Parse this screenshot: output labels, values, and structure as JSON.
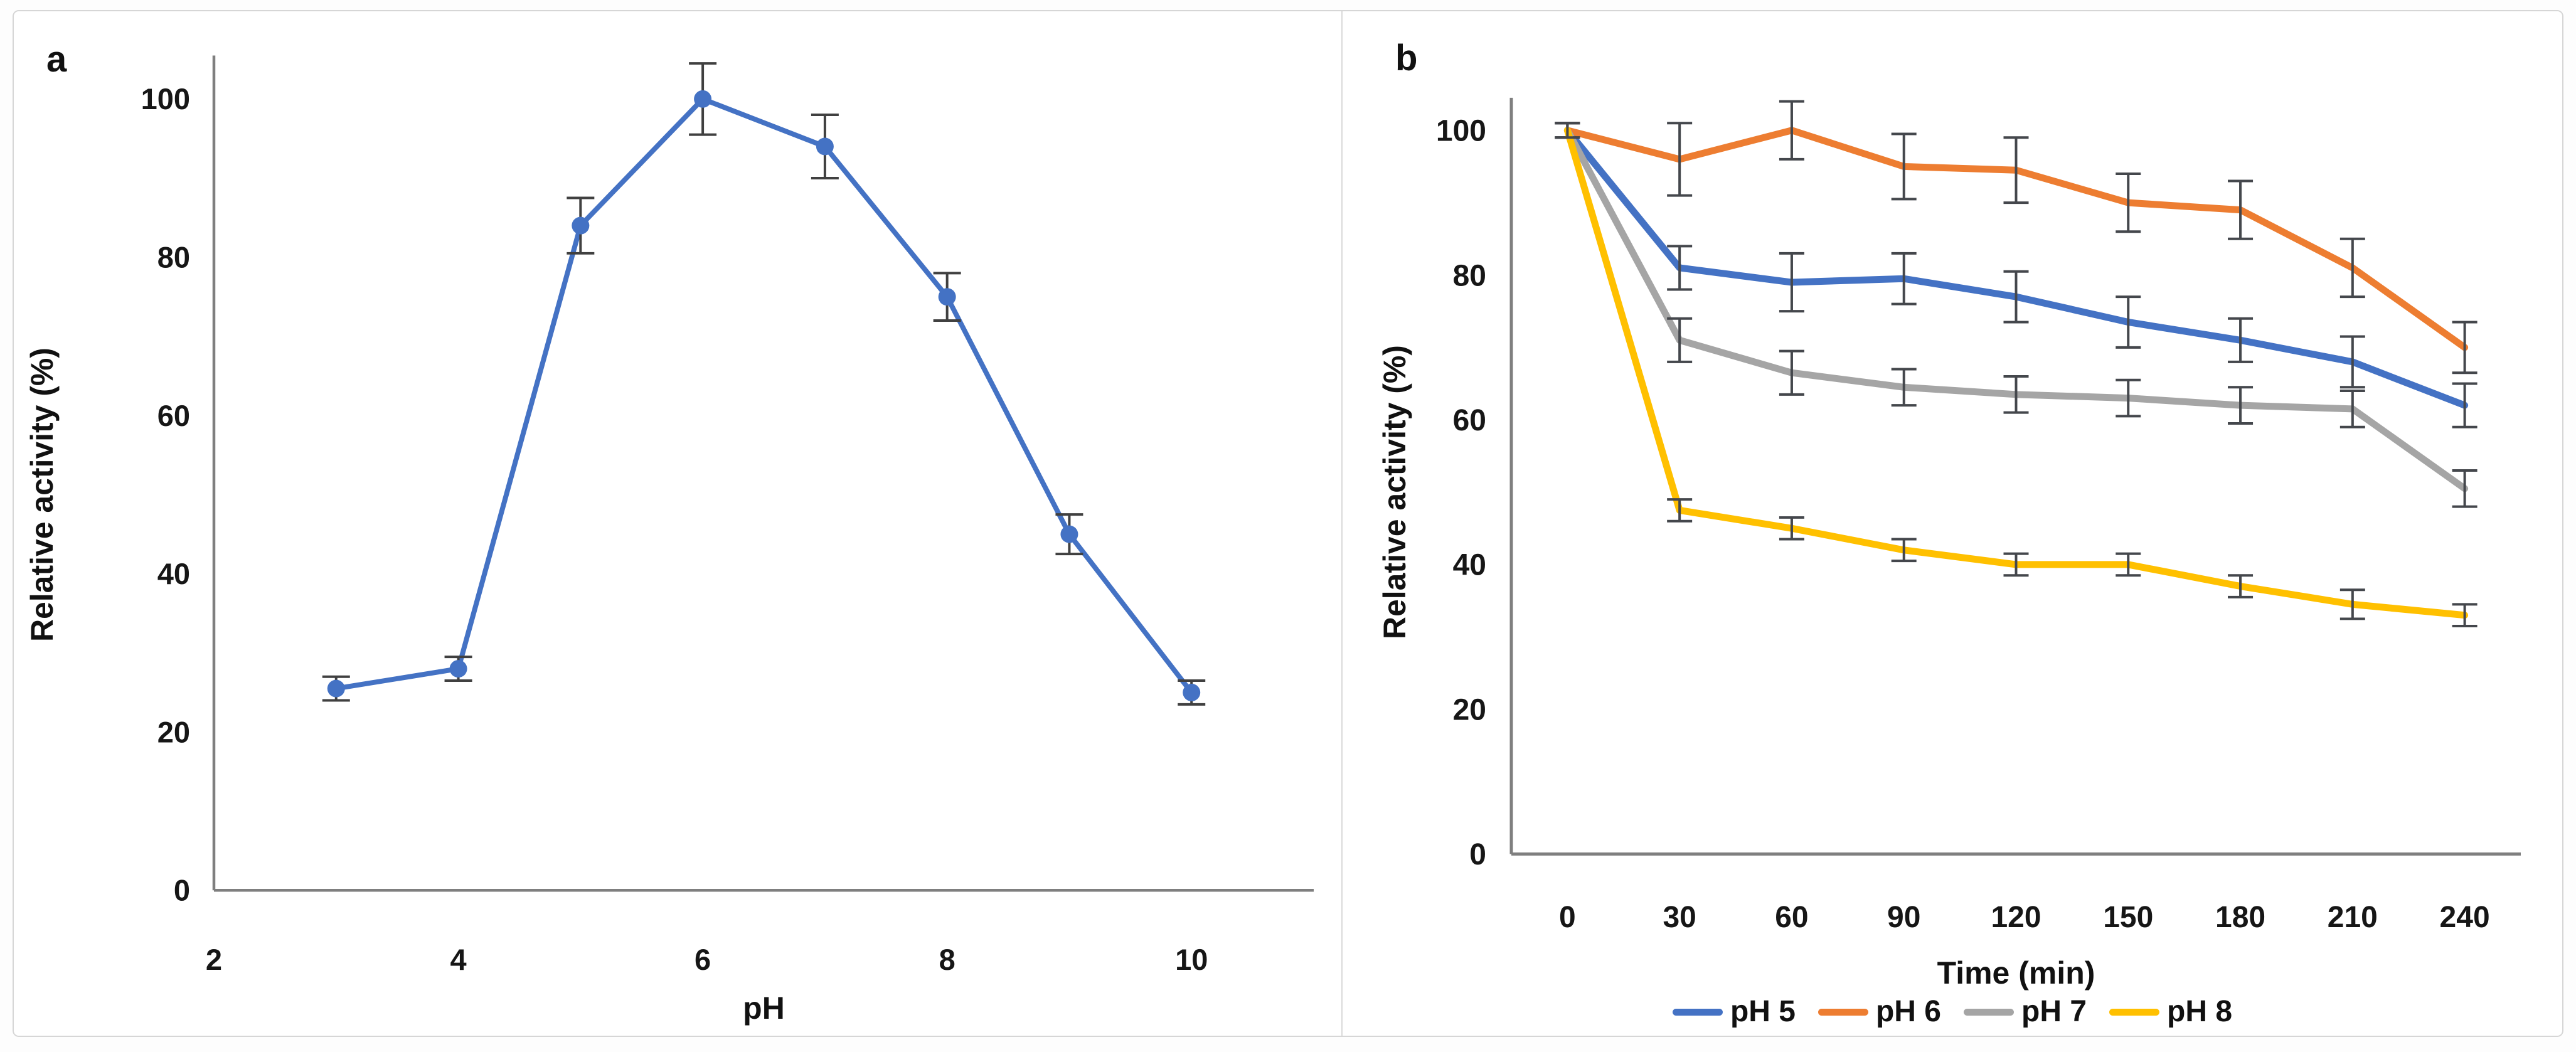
{
  "figure": {
    "background_color": "#ffffff",
    "border_color": "#d6d6d6",
    "divider_color": "#dadada"
  },
  "chart_data": [
    {
      "panel_label": "a",
      "type": "line",
      "x": [
        3,
        4,
        5,
        6,
        7,
        8,
        9,
        10
      ],
      "series": [
        {
          "name": "Relative activity",
          "color": "#4472C4",
          "markers": true,
          "values": [
            25.5,
            28,
            84,
            100,
            94,
            75,
            45,
            25
          ],
          "errors": [
            1.5,
            1.5,
            3.5,
            4.5,
            4,
            3,
            2.5,
            1.5
          ]
        }
      ],
      "title": "",
      "xlabel": "pH",
      "ylabel": "Relative activity (%)",
      "xlim": [
        2,
        11
      ],
      "ylim": [
        0,
        100
      ],
      "xticks": [
        2,
        4,
        6,
        8,
        10
      ],
      "yticks": [
        0,
        20,
        40,
        60,
        80,
        100
      ],
      "grid": false,
      "legend_position": "none",
      "axis_color": "#7f7f7f",
      "error_bar_color": "#404040"
    },
    {
      "panel_label": "b",
      "type": "line",
      "x": [
        0,
        30,
        60,
        90,
        120,
        150,
        180,
        210,
        240
      ],
      "series": [
        {
          "name": "pH 5",
          "color": "#4472C4",
          "markers": false,
          "values": [
            100,
            81,
            79,
            79.5,
            77,
            73.5,
            71,
            68,
            62
          ],
          "errors": [
            1,
            3,
            4,
            3.5,
            3.5,
            3.5,
            3,
            3.5,
            3
          ]
        },
        {
          "name": "pH 6",
          "color": "#ED7D31",
          "markers": false,
          "values": [
            100,
            96,
            100,
            95,
            94.5,
            90,
            89,
            81,
            70
          ],
          "errors": [
            1,
            5,
            4,
            4.5,
            4.5,
            4,
            4,
            4,
            3.5
          ]
        },
        {
          "name": "pH 7",
          "color": "#A5A5A5",
          "markers": false,
          "values": [
            100,
            71,
            66.5,
            64.5,
            63.5,
            63,
            62,
            61.5,
            50.5
          ],
          "errors": [
            1,
            3,
            3,
            2.5,
            2.5,
            2.5,
            2.5,
            2.5,
            2.5
          ]
        },
        {
          "name": "pH 8",
          "color": "#FFC000",
          "markers": false,
          "values": [
            100,
            47.5,
            45,
            42,
            40,
            40,
            37,
            34.5,
            33
          ],
          "errors": [
            1,
            1.5,
            1.5,
            1.5,
            1.5,
            1.5,
            1.5,
            2,
            1.5
          ]
        }
      ],
      "title": "",
      "xlabel": "Time (min)",
      "ylabel": "Relative activity (%)",
      "xlim": [
        -15,
        255
      ],
      "ylim": [
        0,
        100
      ],
      "xticks": [
        0,
        30,
        60,
        90,
        120,
        150,
        180,
        210,
        240
      ],
      "yticks": [
        0,
        20,
        40,
        60,
        80,
        100
      ],
      "grid": false,
      "legend_position": "bottom",
      "axis_color": "#7f7f7f",
      "error_bar_color": "#44474c"
    }
  ]
}
